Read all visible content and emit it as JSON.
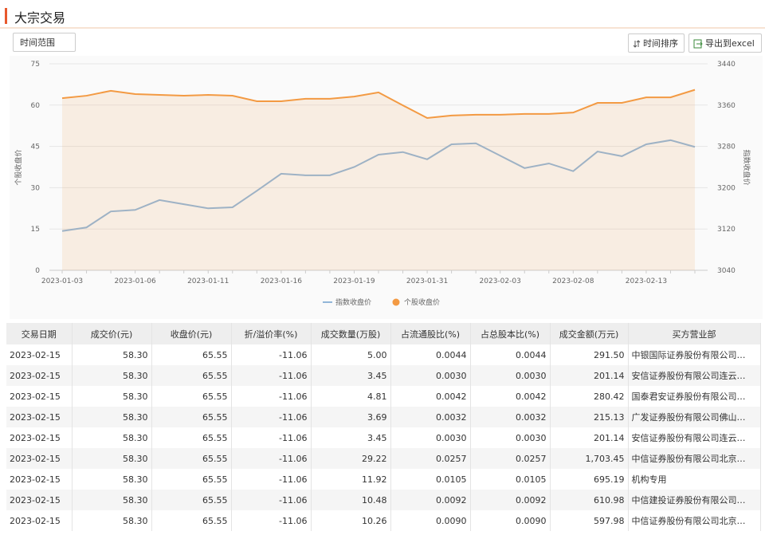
{
  "header": {
    "title": "大宗交易",
    "filter_label": "时间范围",
    "sort_button": "时间排序",
    "export_button": "导出到excel"
  },
  "chart_data": {
    "type": "line",
    "categories": [
      "2023-01-03",
      null,
      null,
      "2023-01-06",
      null,
      null,
      "2023-01-11",
      null,
      null,
      "2023-01-16",
      null,
      null,
      "2023-01-19",
      null,
      null,
      "2023-01-31",
      null,
      null,
      "2023-02-03",
      null,
      null,
      "2023-02-08",
      null,
      null,
      "2023-02-13",
      null,
      null
    ],
    "series": [
      {
        "name": "指数收盘价",
        "color": "#92b6d8",
        "axis": "y2",
        "values": [
          3116,
          3123,
          3154,
          3157,
          3176,
          3168,
          3160,
          3162,
          3194,
          3227,
          3224,
          3224,
          3240,
          3264,
          3269,
          3255,
          3284,
          3286,
          3262,
          3238,
          3247,
          3232,
          3270,
          3261,
          3284,
          3292,
          3279
        ]
      },
      {
        "name": "个股收盘价",
        "color": "#f39a43",
        "axis": "y",
        "values": [
          62.5,
          63.4,
          65.2,
          64.0,
          63.7,
          63.4,
          63.7,
          63.4,
          61.4,
          61.4,
          62.3,
          62.3,
          63.1,
          64.6,
          59.9,
          55.3,
          56.2,
          56.5,
          56.5,
          56.8,
          56.8,
          57.3,
          60.8,
          60.8,
          62.8,
          62.8,
          65.55
        ]
      }
    ],
    "ylim": [
      0,
      75
    ],
    "yticks": [
      0,
      15,
      30,
      45,
      60,
      75
    ],
    "y2lim": [
      3040,
      3440
    ],
    "y2ticks": [
      3040,
      3120,
      3200,
      3280,
      3360,
      3440
    ],
    "ylabel": "个股收盘价",
    "y2label": "指数收盘价",
    "grid": true,
    "legend": "bottom"
  },
  "table": {
    "headers": [
      "交易日期",
      "成交价(元)",
      "收盘价(元)",
      "折/溢价率(%)",
      "成交数量(万股)",
      "占流通股比(%)",
      "占总股本比(%)",
      "成交金额(万元)",
      "买方营业部"
    ],
    "rows": [
      [
        "2023-02-15",
        "58.30",
        "65.55",
        "-11.06",
        "5.00",
        "0.0044",
        "0.0044",
        "291.50",
        "中银国际证券股份有限公司…"
      ],
      [
        "2023-02-15",
        "58.30",
        "65.55",
        "-11.06",
        "3.45",
        "0.0030",
        "0.0030",
        "201.14",
        "安信证券股份有限公司连云…"
      ],
      [
        "2023-02-15",
        "58.30",
        "65.55",
        "-11.06",
        "4.81",
        "0.0042",
        "0.0042",
        "280.42",
        "国泰君安证券股份有限公司…"
      ],
      [
        "2023-02-15",
        "58.30",
        "65.55",
        "-11.06",
        "3.69",
        "0.0032",
        "0.0032",
        "215.13",
        "广发证券股份有限公司佛山…"
      ],
      [
        "2023-02-15",
        "58.30",
        "65.55",
        "-11.06",
        "3.45",
        "0.0030",
        "0.0030",
        "201.14",
        "安信证券股份有限公司连云…"
      ],
      [
        "2023-02-15",
        "58.30",
        "65.55",
        "-11.06",
        "29.22",
        "0.0257",
        "0.0257",
        "1,703.45",
        "中信证券股份有限公司北京…"
      ],
      [
        "2023-02-15",
        "58.30",
        "65.55",
        "-11.06",
        "11.92",
        "0.0105",
        "0.0105",
        "695.19",
        "机构专用"
      ],
      [
        "2023-02-15",
        "58.30",
        "65.55",
        "-11.06",
        "10.48",
        "0.0092",
        "0.0092",
        "610.98",
        "中信建投证券股份有限公司…"
      ],
      [
        "2023-02-15",
        "58.30",
        "65.55",
        "-11.06",
        "10.26",
        "0.0090",
        "0.0090",
        "597.98",
        "中信证券股份有限公司北京…"
      ]
    ]
  }
}
